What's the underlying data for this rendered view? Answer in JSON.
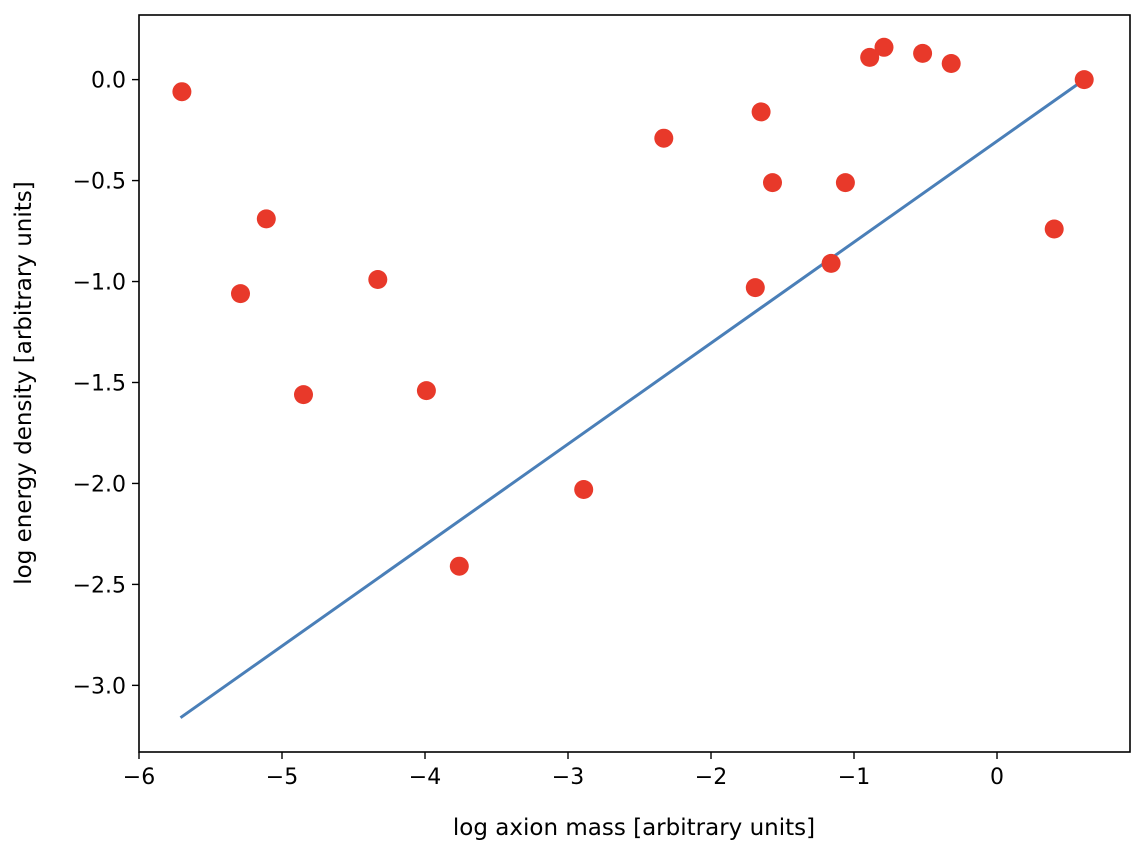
{
  "chart_data": {
    "type": "scatter",
    "title": "",
    "xlabel": "log axion mass [arbitrary units]",
    "ylabel": "log energy density [arbitrary units]",
    "xlim": [
      -6.0,
      0.93
    ],
    "ylim": [
      -3.33,
      0.32
    ],
    "xticks": [
      -6,
      -5,
      -4,
      -3,
      -2,
      -1,
      0
    ],
    "yticks": [
      -3.0,
      -2.5,
      -2.0,
      -1.5,
      -1.0,
      -0.5,
      0.0
    ],
    "xtick_labels": [
      "−6",
      "−5",
      "−4",
      "−3",
      "−2",
      "−1",
      "0"
    ],
    "ytick_labels": [
      "−3.0",
      "−2.5",
      "−2.0",
      "−1.5",
      "−1.0",
      "−0.5",
      "0.0"
    ],
    "grid": false,
    "series": [
      {
        "kind": "scatter",
        "color": "#e8392a",
        "points": [
          {
            "x": -5.7,
            "y": -0.06
          },
          {
            "x": -5.29,
            "y": -1.06
          },
          {
            "x": -5.11,
            "y": -0.69
          },
          {
            "x": -4.85,
            "y": -1.56
          },
          {
            "x": -4.33,
            "y": -0.99
          },
          {
            "x": -3.99,
            "y": -1.54
          },
          {
            "x": -3.76,
            "y": -2.41
          },
          {
            "x": -2.89,
            "y": -2.03
          },
          {
            "x": -2.33,
            "y": -0.29
          },
          {
            "x": -1.69,
            "y": -1.03
          },
          {
            "x": -1.65,
            "y": -0.16
          },
          {
            "x": -1.57,
            "y": -0.51
          },
          {
            "x": -1.16,
            "y": -0.91
          },
          {
            "x": -1.06,
            "y": -0.51
          },
          {
            "x": -0.89,
            "y": 0.11
          },
          {
            "x": -0.79,
            "y": 0.16
          },
          {
            "x": -0.52,
            "y": 0.13
          },
          {
            "x": -0.32,
            "y": 0.08
          },
          {
            "x": 0.4,
            "y": -0.74
          },
          {
            "x": 0.61,
            "y": 0.0
          }
        ]
      },
      {
        "kind": "line",
        "color": "#4a7fb8",
        "points": [
          {
            "x": -5.71,
            "y": -3.16
          },
          {
            "x": 0.61,
            "y": 0.0
          }
        ]
      }
    ]
  }
}
